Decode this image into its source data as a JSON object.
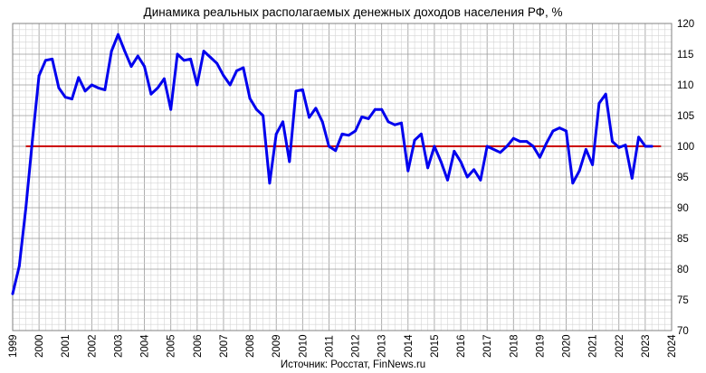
{
  "chart_data": {
    "type": "line",
    "title": "Динамика реальных располагаемых денежных доходов населения РФ, %",
    "source": "Источник: Росстат, FinNews.ru",
    "xlabel": "",
    "ylabel": "",
    "xlim": [
      1999,
      2024
    ],
    "ylim": [
      70,
      120
    ],
    "y_axis_side": "right",
    "grid": true,
    "legend": "none",
    "x_ticks": [
      "1999",
      "2000",
      "2001",
      "2002",
      "2003",
      "2004",
      "2005",
      "2006",
      "2007",
      "2008",
      "2009",
      "2010",
      "2011",
      "2012",
      "2013",
      "2014",
      "2015",
      "2016",
      "2017",
      "2018",
      "2019",
      "2020",
      "2021",
      "2022",
      "2023",
      "2024"
    ],
    "y_ticks": [
      "70",
      "75",
      "80",
      "85",
      "90",
      "95",
      "100",
      "105",
      "110",
      "115",
      "120"
    ],
    "reference_line": {
      "y": 100,
      "x_start": 1999.5,
      "x_end": 2023.6,
      "color": "#cc0000"
    },
    "series": [
      {
        "color": "#0000ee",
        "x": [
          1999.0,
          1999.25,
          1999.5,
          1999.75,
          2000.0,
          2000.25,
          2000.5,
          2000.75,
          2001.0,
          2001.25,
          2001.5,
          2001.75,
          2002.0,
          2002.25,
          2002.5,
          2002.75,
          2003.0,
          2003.25,
          2003.5,
          2003.75,
          2004.0,
          2004.25,
          2004.5,
          2004.75,
          2005.0,
          2005.25,
          2005.5,
          2005.75,
          2006.0,
          2006.25,
          2006.5,
          2006.75,
          2007.0,
          2007.25,
          2007.5,
          2007.75,
          2008.0,
          2008.25,
          2008.5,
          2008.75,
          2009.0,
          2009.25,
          2009.5,
          2009.75,
          2010.0,
          2010.25,
          2010.5,
          2010.75,
          2011.0,
          2011.25,
          2011.5,
          2011.75,
          2012.0,
          2012.25,
          2012.5,
          2012.75,
          2013.0,
          2013.25,
          2013.5,
          2013.75,
          2014.0,
          2014.25,
          2014.5,
          2014.75,
          2015.0,
          2015.25,
          2015.5,
          2015.75,
          2016.0,
          2016.25,
          2016.5,
          2016.75,
          2017.0,
          2017.25,
          2017.5,
          2017.75,
          2018.0,
          2018.25,
          2018.5,
          2018.75,
          2019.0,
          2019.25,
          2019.5,
          2019.75,
          2020.0,
          2020.25,
          2020.5,
          2020.75,
          2021.0,
          2021.25,
          2021.5,
          2021.75,
          2022.0,
          2022.25,
          2022.5,
          2022.75,
          2023.0,
          2023.25
        ],
        "values": [
          76.0,
          80.5,
          90.0,
          101.0,
          111.5,
          114.0,
          114.2,
          109.5,
          108.0,
          107.7,
          111.2,
          109.0,
          110.0,
          109.5,
          109.2,
          115.5,
          118.2,
          115.5,
          113.0,
          114.7,
          113.0,
          108.5,
          109.5,
          111.0,
          106.0,
          115.0,
          114.0,
          114.2,
          110.0,
          115.5,
          114.5,
          113.5,
          111.5,
          110.0,
          112.3,
          112.8,
          107.8,
          106.0,
          105.0,
          94.0,
          102.0,
          104.0,
          97.5,
          109.0,
          109.2,
          104.7,
          106.2,
          104.0,
          100.0,
          99.3,
          102.0,
          101.8,
          102.5,
          104.8,
          104.5,
          106.0,
          106.0,
          104.0,
          103.5,
          103.8,
          96.0,
          101.0,
          102.0,
          96.5,
          100.0,
          97.5,
          94.5,
          99.2,
          97.5,
          95.0,
          96.2,
          94.5,
          100.0,
          99.5,
          99.0,
          100.0,
          101.3,
          100.8,
          100.8,
          100.0,
          98.2,
          100.5,
          102.5,
          103.0,
          102.5,
          94.0,
          96.0,
          99.5,
          97.0,
          107.0,
          108.5,
          100.8,
          99.8,
          100.2,
          94.8,
          101.5,
          100.0,
          100.0
        ]
      }
    ]
  }
}
